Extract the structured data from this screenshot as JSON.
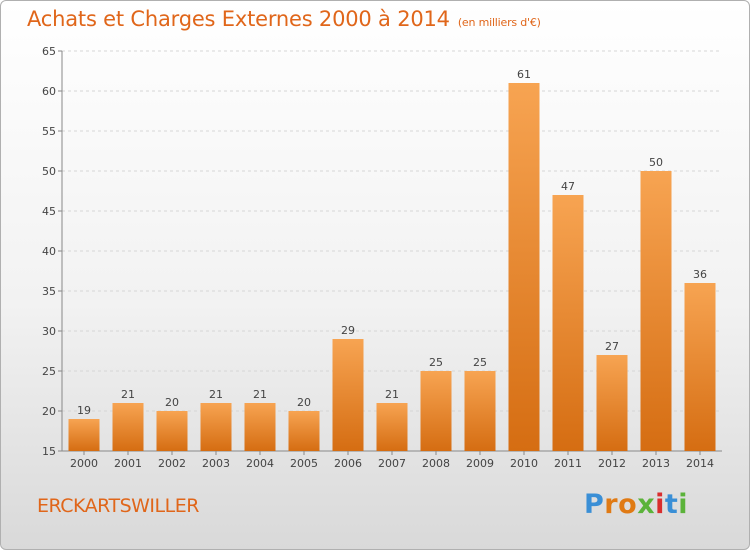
{
  "chart_data": {
    "type": "bar",
    "title": "Achats et Charges Externes 2000 à 2014",
    "subtitle": "(en milliers d'€)",
    "categories": [
      "2000",
      "2001",
      "2002",
      "2003",
      "2004",
      "2005",
      "2006",
      "2007",
      "2008",
      "2009",
      "2010",
      "2011",
      "2012",
      "2013",
      "2014"
    ],
    "values": [
      19,
      21,
      20,
      21,
      21,
      20,
      29,
      21,
      25,
      25,
      61,
      47,
      27,
      50,
      36
    ],
    "ylim": [
      15,
      65
    ],
    "yticks": [
      15,
      20,
      25,
      30,
      35,
      40,
      45,
      50,
      55,
      60,
      65
    ],
    "grid": true,
    "xlabel": "",
    "ylabel": "",
    "colors": {
      "bar_light": "#f7a452",
      "bar_dark": "#d56d12",
      "title": "#e0661a"
    }
  },
  "commune": "ERCKARTSWILLER",
  "logo": {
    "text": "Proxiti",
    "letter_colors": [
      "#3a8fd6",
      "#e07a14",
      "#e07a14",
      "#5bb33a",
      "#d92e2e",
      "#3a8fd6",
      "#5bb33a"
    ]
  }
}
